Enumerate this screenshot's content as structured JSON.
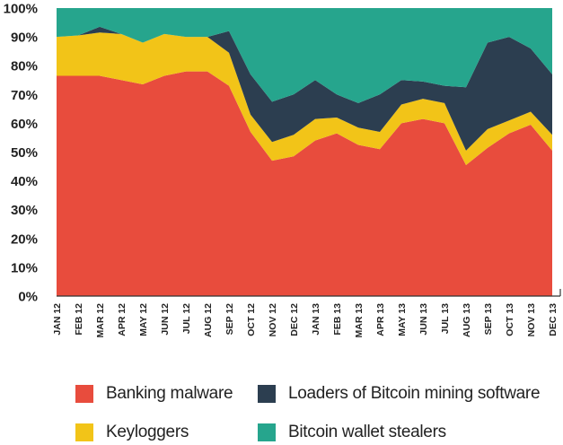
{
  "chart_data": {
    "type": "area",
    "stacked": true,
    "percent": true,
    "categories": [
      "JAN 12",
      "FEB 12",
      "MAR 12",
      "APR 12",
      "MAY 12",
      "JUN 12",
      "JUL 12",
      "AUG 12",
      "SEP 12",
      "OCT 12",
      "NOV 12",
      "DEC 12",
      "JAN 13",
      "FEB 13",
      "MAR 13",
      "APR 13",
      "MAY 13",
      "JUN 13",
      "JUL 13",
      "AUG 13",
      "SEP 13",
      "OCT 13",
      "NOV 13",
      "DEC 13"
    ],
    "yticks": [
      "0%",
      "10%",
      "20%",
      "30%",
      "40%",
      "50%",
      "60%",
      "70%",
      "80%",
      "90%",
      "100%"
    ],
    "ylim": [
      0,
      100
    ],
    "legend_position": "bottom",
    "series": [
      {
        "name": "Banking malware",
        "color": "#e84c3d",
        "values": [
          76.5,
          76.5,
          76.5,
          75,
          73.5,
          76.5,
          78,
          78,
          73,
          57,
          47,
          48.5,
          54,
          56.5,
          52.5,
          51,
          60,
          61.5,
          60,
          45.5,
          51.5,
          56.5,
          59.5,
          50.5
        ]
      },
      {
        "name": "Keyloggers",
        "color": "#f2c418",
        "values": [
          13.5,
          14,
          15,
          16,
          14.5,
          14.5,
          12,
          12,
          11.5,
          6,
          6.5,
          7.5,
          7.5,
          5.5,
          6,
          6,
          6.5,
          7,
          7,
          5,
          6.5,
          4.5,
          4.5,
          5.5
        ]
      },
      {
        "name": "Loaders of Bitcoin mining software",
        "color": "#2c3e50",
        "values": [
          0,
          0,
          2,
          0,
          0,
          0,
          0,
          0,
          7.5,
          14,
          14,
          14,
          13.5,
          8,
          8.5,
          13,
          8.5,
          6,
          6,
          22,
          30,
          29,
          22,
          21
        ]
      },
      {
        "name": "Bitcoin wallet stealers",
        "color": "#26a58d",
        "values": [
          10,
          9.5,
          6.5,
          9,
          12,
          9,
          10,
          10,
          8,
          23,
          32.5,
          30,
          25,
          30,
          33,
          30,
          25,
          25.5,
          27,
          27.5,
          12,
          10,
          14,
          23
        ]
      }
    ]
  }
}
